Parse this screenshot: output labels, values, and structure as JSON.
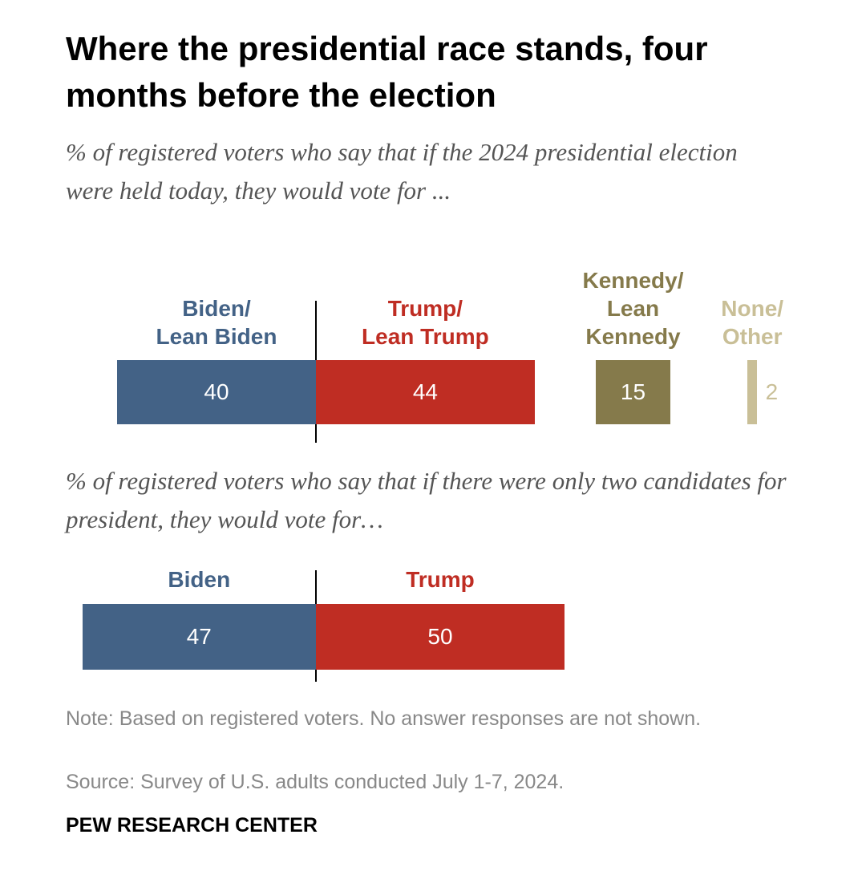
{
  "title": "Where the presidential race stands, four months before the election",
  "note": "Note: Based on registered voters. No answer responses are not shown.",
  "source": "Source: Survey of U.S. adults conducted July 1-7, 2024.",
  "credit": "PEW RESEARCH CENTER",
  "chart_data": [
    {
      "type": "bar",
      "subtitle": "% of registered voters who say that if the 2024 presidential election were held today, they would vote for ...",
      "categories": [
        "Biden/\nLean Biden",
        "Trump/\nLean Trump",
        "Kennedy/\nLean\nKennedy",
        "None/\nOther"
      ],
      "values": [
        40,
        44,
        15,
        2
      ],
      "colors": [
        "#436286",
        "#bf2d23",
        "#857a4b",
        "#c9bf97"
      ]
    },
    {
      "type": "bar",
      "subtitle": "% of registered voters who say that if there were only two candidates for president, they would vote for…",
      "categories": [
        "Biden",
        "Trump"
      ],
      "values": [
        47,
        50
      ],
      "colors": [
        "#436286",
        "#bf2d23"
      ]
    }
  ]
}
